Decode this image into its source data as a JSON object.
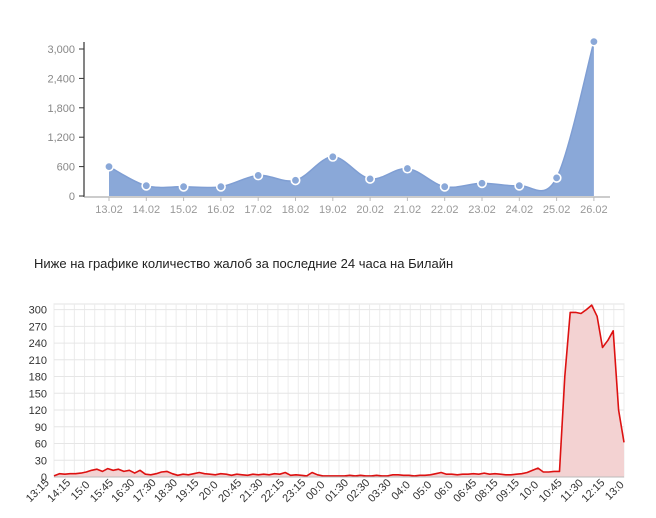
{
  "caption": "Ниже на графике количество жалоб за последние 24 часа на Билайн",
  "chart_data": [
    {
      "type": "area",
      "categories": [
        "13.02",
        "14.02",
        "15.02",
        "16.02",
        "17.02",
        "18.02",
        "19.02",
        "20.02",
        "21.02",
        "22.02",
        "23.02",
        "24.02",
        "25.02",
        "26.02"
      ],
      "values": [
        600,
        210,
        190,
        190,
        420,
        320,
        800,
        350,
        560,
        190,
        260,
        210,
        370,
        3150
      ],
      "y_ticks": [
        "0",
        "600",
        "1,200",
        "1,800",
        "2,400",
        "3,000"
      ],
      "ylim": [
        0,
        3200
      ],
      "color": "#8aa8d8",
      "markers": true,
      "grid": false
    },
    {
      "type": "area",
      "x_ticks": [
        "13:15",
        "14:15",
        "15:0",
        "15:45",
        "16:30",
        "17:30",
        "18:30",
        "19:15",
        "20:0",
        "20:45",
        "21:30",
        "22:15",
        "23:15",
        "00:0",
        "01:30",
        "02:30",
        "03:30",
        "04:0",
        "05:0",
        "06:0",
        "06:45",
        "08:15",
        "09:15",
        "10:0",
        "10:45",
        "11:30",
        "12:15",
        "13:0"
      ],
      "y_ticks": [
        "0",
        "30",
        "60",
        "90",
        "120",
        "150",
        "180",
        "210",
        "240",
        "270",
        "300"
      ],
      "ylim": [
        0,
        310
      ],
      "values": [
        2,
        6,
        5,
        6,
        6,
        7,
        9,
        12,
        14,
        10,
        15,
        12,
        14,
        10,
        12,
        7,
        12,
        5,
        4,
        6,
        9,
        10,
        6,
        3,
        5,
        4,
        6,
        8,
        6,
        5,
        4,
        6,
        5,
        3,
        5,
        4,
        3,
        5,
        4,
        5,
        4,
        6,
        5,
        8,
        3,
        4,
        3,
        2,
        8,
        4,
        2,
        2,
        2,
        2,
        2,
        3,
        2,
        3,
        2,
        2,
        3,
        2,
        2,
        4,
        4,
        3,
        3,
        2,
        3,
        3,
        4,
        6,
        8,
        5,
        5,
        4,
        5,
        5,
        6,
        5,
        7,
        5,
        6,
        5,
        4,
        4,
        5,
        6,
        8,
        12,
        16,
        9,
        9,
        10,
        10,
        180,
        295,
        295,
        293,
        300,
        308,
        288,
        232,
        245,
        262,
        120,
        62
      ],
      "color": "#dd1111",
      "fill": "#f3d2d2",
      "grid": true
    }
  ]
}
